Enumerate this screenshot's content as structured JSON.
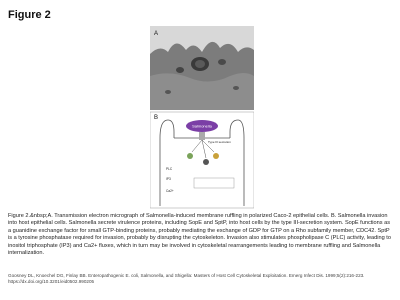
{
  "header": {
    "title": "Figure 2"
  },
  "figure": {
    "panel_a_label": "A",
    "panel_b_label": "B",
    "diagram_labels": {
      "bacterium": "Salmonella",
      "secretion": "Type III secretion",
      "plc": "PLC",
      "ip3": "IP3",
      "calcium": "Ca2+"
    }
  },
  "caption": "Figure 2.&nbsp;A. Transmission electron micrograph of Salmonella-induced membrane ruffling in polarized Caco-2 epithelial cells. B. Salmonella invasion into host epithelial cells. Salmonella secrete virulence proteins, including SopE and SptP, into host cells by the type III-secretion system. SopE functions as a guanidine exchange factor for small GTP-binding proteins, probably mediating the exchange of GDP for GTP on a Rho subfamily member, CDC42. SptP is a tyrosine phosphatase required for invasion, probably by disrupting the cytoskeleton. Invasion also stimulates phospholipase C (PLC) activity, leading to inositol triphosphate (IP3) and Ca2+ fluxes, which in turn may be involved in cytoskeletal rearrangements leading to membrane ruffling and Salmonella internalization.",
  "citation": "Goosney DL, Knoechel DG, Finlay BB. Enteropathogenic E. coli, Salmonella, and Shigella: Masters of Host Cell Cytoskeletal Exploitation. Emerg Infect Dis. 1999;5(2):216-223. https://dx.doi.org/10.3201/eid0502.990205"
}
